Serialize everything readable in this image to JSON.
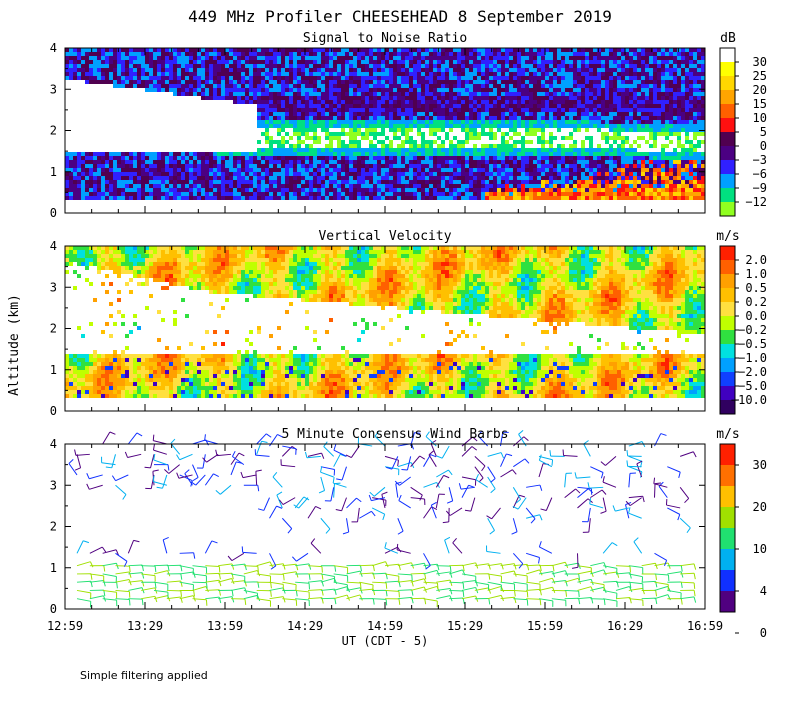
{
  "chart_data": {
    "title": "449 MHz Profiler CHEESEHEAD  8 September 2019",
    "xlabel": "UT  (CDT - 5)",
    "ylabel": "Altitude (km)",
    "x_ticks": [
      "12:59",
      "13:29",
      "13:59",
      "14:29",
      "14:59",
      "15:29",
      "15:59",
      "16:29",
      "16:59"
    ],
    "y_ticks": [
      "0",
      "1",
      "2",
      "3",
      "4"
    ],
    "ylim": [
      0,
      4
    ],
    "note": "Simple filtering applied",
    "panels": [
      {
        "type": "heatmap",
        "title": "Signal to Noise Ratio",
        "unit": "dB",
        "colorbar": {
          "labels": [
            "30",
            "25",
            "20",
            "15",
            "10",
            "5",
            "0",
            "−3",
            "−6",
            "−9",
            "−12"
          ],
          "colors": [
            "#ffffff",
            "#ffff00",
            "#ffd700",
            "#ffa500",
            "#ff6000",
            "#ff1010",
            "#500050",
            "#4b0082",
            "#3020ff",
            "#00a0ff",
            "#00e080",
            "#90ff20"
          ]
        }
      },
      {
        "type": "heatmap",
        "title": "Vertical Velocity",
        "unit": "m/s",
        "colorbar": {
          "labels": [
            "2.0",
            "1.0",
            "0.5",
            "0.2",
            "0.0",
            "−0.2",
            "−0.5",
            "−1.0",
            "−2.0",
            "−5.0",
            "−10.0"
          ],
          "colors": [
            "#ff2000",
            "#ff6000",
            "#ffa000",
            "#ffc000",
            "#ffe040",
            "#c0ff00",
            "#30e040",
            "#00e0e0",
            "#00a0ff",
            "#1040ff",
            "#4000c0",
            "#300060"
          ]
        }
      },
      {
        "type": "scatter",
        "title": "5 Minute Consensus Wind Barbs",
        "unit": "m/s",
        "colorbar": {
          "labels": [
            "30",
            "20",
            "10",
            "4",
            "0"
          ],
          "colors": [
            "#ff2000",
            "#ff7000",
            "#ffc000",
            "#a0e000",
            "#20e070",
            "#00b0f0",
            "#1030ff",
            "#500080"
          ]
        }
      }
    ]
  }
}
